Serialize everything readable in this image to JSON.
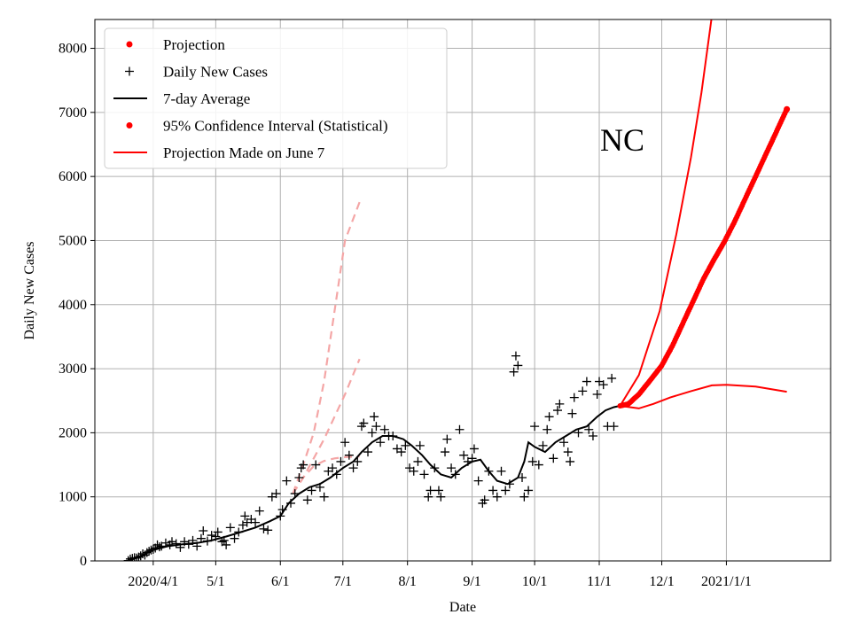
{
  "chart_data": {
    "type": "line",
    "state_label": "NC",
    "xlabel": "Date",
    "ylabel": "Daily New Cases",
    "x_axis": {
      "kind": "date",
      "range": [
        "2020-03-04",
        "2021-02-20"
      ],
      "ticks": [
        {
          "date": "2020-04-01",
          "label": "2020/4/1"
        },
        {
          "date": "2020-05-01",
          "label": "5/1"
        },
        {
          "date": "2020-06-01",
          "label": "6/1"
        },
        {
          "date": "2020-07-01",
          "label": "7/1"
        },
        {
          "date": "2020-08-01",
          "label": "8/1"
        },
        {
          "date": "2020-09-01",
          "label": "9/1"
        },
        {
          "date": "2020-10-01",
          "label": "10/1"
        },
        {
          "date": "2020-11-01",
          "label": "11/1"
        },
        {
          "date": "2020-12-01",
          "label": "12/1"
        },
        {
          "date": "2021-01-01",
          "label": "2021/1/1"
        }
      ]
    },
    "y_axis": {
      "range": [
        0,
        8450
      ],
      "ticks": [
        0,
        1000,
        2000,
        3000,
        4000,
        5000,
        6000,
        7000,
        8000
      ]
    },
    "grid": true,
    "legend": {
      "position": "top-left",
      "entries": [
        {
          "label": "Projection",
          "marker": "dot",
          "color": "#ff0000"
        },
        {
          "label": "Daily New Cases",
          "marker": "plus",
          "color": "#000000"
        },
        {
          "label": "7-day Average",
          "marker": "line",
          "color": "#000000"
        },
        {
          "label": "95% Confidence Interval (Statistical)",
          "marker": "dot",
          "color": "#ff0000"
        },
        {
          "label": "Projection Made on June 7",
          "marker": "line",
          "color": "#ff0000"
        }
      ]
    },
    "series": {
      "seven_day_average": {
        "color": "#000000",
        "points": [
          [
            "2020-03-20",
            0
          ],
          [
            "2020-03-25",
            60
          ],
          [
            "2020-04-01",
            170
          ],
          [
            "2020-04-08",
            230
          ],
          [
            "2020-04-15",
            260
          ],
          [
            "2020-04-22",
            280
          ],
          [
            "2020-04-29",
            320
          ],
          [
            "2020-05-06",
            380
          ],
          [
            "2020-05-13",
            450
          ],
          [
            "2020-05-20",
            520
          ],
          [
            "2020-05-27",
            620
          ],
          [
            "2020-06-01",
            700
          ],
          [
            "2020-06-05",
            900
          ],
          [
            "2020-06-10",
            1050
          ],
          [
            "2020-06-15",
            1150
          ],
          [
            "2020-06-20",
            1200
          ],
          [
            "2020-06-25",
            1300
          ],
          [
            "2020-07-01",
            1450
          ],
          [
            "2020-07-06",
            1550
          ],
          [
            "2020-07-10",
            1700
          ],
          [
            "2020-07-15",
            1850
          ],
          [
            "2020-07-20",
            1950
          ],
          [
            "2020-07-25",
            1950
          ],
          [
            "2020-07-30",
            1900
          ],
          [
            "2020-08-03",
            1800
          ],
          [
            "2020-08-08",
            1650
          ],
          [
            "2020-08-12",
            1500
          ],
          [
            "2020-08-17",
            1350
          ],
          [
            "2020-08-22",
            1300
          ],
          [
            "2020-08-27",
            1450
          ],
          [
            "2020-09-01",
            1550
          ],
          [
            "2020-09-05",
            1580
          ],
          [
            "2020-09-09",
            1400
          ],
          [
            "2020-09-13",
            1250
          ],
          [
            "2020-09-18",
            1200
          ],
          [
            "2020-09-23",
            1300
          ],
          [
            "2020-09-26",
            1550
          ],
          [
            "2020-09-28",
            1850
          ],
          [
            "2020-10-01",
            1780
          ],
          [
            "2020-10-06",
            1700
          ],
          [
            "2020-10-11",
            1850
          ],
          [
            "2020-10-16",
            1950
          ],
          [
            "2020-10-21",
            2050
          ],
          [
            "2020-10-26",
            2100
          ],
          [
            "2020-10-31",
            2250
          ],
          [
            "2020-11-04",
            2350
          ],
          [
            "2020-11-08",
            2400
          ],
          [
            "2020-11-11",
            2420
          ]
        ]
      },
      "daily_new_cases": {
        "color": "#000000",
        "points": [
          [
            "2020-03-20",
            5
          ],
          [
            "2020-03-21",
            30
          ],
          [
            "2020-03-22",
            40
          ],
          [
            "2020-03-23",
            50
          ],
          [
            "2020-03-24",
            45
          ],
          [
            "2020-03-25",
            60
          ],
          [
            "2020-03-26",
            80
          ],
          [
            "2020-03-27",
            110
          ],
          [
            "2020-03-28",
            90
          ],
          [
            "2020-03-29",
            130
          ],
          [
            "2020-03-30",
            150
          ],
          [
            "2020-03-31",
            170
          ],
          [
            "2020-04-01",
            180
          ],
          [
            "2020-04-02",
            200
          ],
          [
            "2020-04-03",
            250
          ],
          [
            "2020-04-04",
            220
          ],
          [
            "2020-04-05",
            230
          ],
          [
            "2020-04-07",
            280
          ],
          [
            "2020-04-09",
            250
          ],
          [
            "2020-04-10",
            300
          ],
          [
            "2020-04-12",
            270
          ],
          [
            "2020-04-14",
            210
          ],
          [
            "2020-04-16",
            300
          ],
          [
            "2020-04-18",
            260
          ],
          [
            "2020-04-20",
            320
          ],
          [
            "2020-04-22",
            230
          ],
          [
            "2020-04-24",
            350
          ],
          [
            "2020-04-25",
            470
          ],
          [
            "2020-04-27",
            310
          ],
          [
            "2020-04-29",
            400
          ],
          [
            "2020-05-01",
            380
          ],
          [
            "2020-05-02",
            450
          ],
          [
            "2020-05-04",
            300
          ],
          [
            "2020-05-05",
            320
          ],
          [
            "2020-05-06",
            250
          ],
          [
            "2020-05-08",
            520
          ],
          [
            "2020-05-10",
            350
          ],
          [
            "2020-05-12",
            450
          ],
          [
            "2020-05-14",
            560
          ],
          [
            "2020-05-15",
            700
          ],
          [
            "2020-05-16",
            600
          ],
          [
            "2020-05-18",
            650
          ],
          [
            "2020-05-20",
            600
          ],
          [
            "2020-05-22",
            780
          ],
          [
            "2020-05-24",
            500
          ],
          [
            "2020-05-26",
            480
          ],
          [
            "2020-05-28",
            1000
          ],
          [
            "2020-05-30",
            1050
          ],
          [
            "2020-06-01",
            700
          ],
          [
            "2020-06-02",
            800
          ],
          [
            "2020-06-04",
            1250
          ],
          [
            "2020-06-06",
            900
          ],
          [
            "2020-06-08",
            1050
          ],
          [
            "2020-06-10",
            1300
          ],
          [
            "2020-06-11",
            1450
          ],
          [
            "2020-06-12",
            1500
          ],
          [
            "2020-06-14",
            950
          ],
          [
            "2020-06-16",
            1100
          ],
          [
            "2020-06-18",
            1500
          ],
          [
            "2020-06-20",
            1150
          ],
          [
            "2020-06-22",
            1000
          ],
          [
            "2020-06-24",
            1400
          ],
          [
            "2020-06-26",
            1450
          ],
          [
            "2020-06-28",
            1350
          ],
          [
            "2020-06-30",
            1550
          ],
          [
            "2020-07-02",
            1850
          ],
          [
            "2020-07-04",
            1650
          ],
          [
            "2020-07-06",
            1450
          ],
          [
            "2020-07-08",
            1550
          ],
          [
            "2020-07-10",
            2100
          ],
          [
            "2020-07-11",
            2150
          ],
          [
            "2020-07-13",
            1700
          ],
          [
            "2020-07-15",
            2000
          ],
          [
            "2020-07-16",
            2250
          ],
          [
            "2020-07-17",
            2100
          ],
          [
            "2020-07-19",
            1850
          ],
          [
            "2020-07-21",
            2050
          ],
          [
            "2020-07-23",
            1950
          ],
          [
            "2020-07-25",
            1950
          ],
          [
            "2020-07-27",
            1750
          ],
          [
            "2020-07-29",
            1700
          ],
          [
            "2020-07-31",
            1800
          ],
          [
            "2020-08-02",
            1450
          ],
          [
            "2020-08-04",
            1400
          ],
          [
            "2020-08-06",
            1550
          ],
          [
            "2020-08-07",
            1800
          ],
          [
            "2020-08-09",
            1350
          ],
          [
            "2020-08-11",
            1000
          ],
          [
            "2020-08-12",
            1100
          ],
          [
            "2020-08-14",
            1450
          ],
          [
            "2020-08-16",
            1100
          ],
          [
            "2020-08-17",
            1000
          ],
          [
            "2020-08-19",
            1700
          ],
          [
            "2020-08-20",
            1900
          ],
          [
            "2020-08-22",
            1450
          ],
          [
            "2020-08-24",
            1350
          ],
          [
            "2020-08-26",
            2050
          ],
          [
            "2020-08-28",
            1650
          ],
          [
            "2020-08-30",
            1550
          ],
          [
            "2020-09-01",
            1600
          ],
          [
            "2020-09-02",
            1750
          ],
          [
            "2020-09-04",
            1250
          ],
          [
            "2020-09-06",
            900
          ],
          [
            "2020-09-07",
            950
          ],
          [
            "2020-09-09",
            1400
          ],
          [
            "2020-09-11",
            1100
          ],
          [
            "2020-09-13",
            1000
          ],
          [
            "2020-09-15",
            1400
          ],
          [
            "2020-09-17",
            1100
          ],
          [
            "2020-09-19",
            1200
          ],
          [
            "2020-09-21",
            2950
          ],
          [
            "2020-09-22",
            3200
          ],
          [
            "2020-09-23",
            3050
          ],
          [
            "2020-09-25",
            1300
          ],
          [
            "2020-09-26",
            1000
          ],
          [
            "2020-09-28",
            1100
          ],
          [
            "2020-09-30",
            1550
          ],
          [
            "2020-10-01",
            2100
          ],
          [
            "2020-10-03",
            1500
          ],
          [
            "2020-10-05",
            1800
          ],
          [
            "2020-10-07",
            2050
          ],
          [
            "2020-10-08",
            2250
          ],
          [
            "2020-10-10",
            1600
          ],
          [
            "2020-10-12",
            2350
          ],
          [
            "2020-10-13",
            2450
          ],
          [
            "2020-10-15",
            1850
          ],
          [
            "2020-10-17",
            1700
          ],
          [
            "2020-10-18",
            1550
          ],
          [
            "2020-10-19",
            2300
          ],
          [
            "2020-10-20",
            2550
          ],
          [
            "2020-10-22",
            2000
          ],
          [
            "2020-10-24",
            2650
          ],
          [
            "2020-10-26",
            2800
          ],
          [
            "2020-10-27",
            2050
          ],
          [
            "2020-10-29",
            1950
          ],
          [
            "2020-10-31",
            2600
          ],
          [
            "2020-11-01",
            2800
          ],
          [
            "2020-11-03",
            2750
          ],
          [
            "2020-11-05",
            2100
          ],
          [
            "2020-11-07",
            2850
          ],
          [
            "2020-11-08",
            2100
          ]
        ]
      },
      "projection": {
        "color": "#ff0000",
        "points": [
          [
            "2020-11-11",
            2420
          ],
          [
            "2020-11-15",
            2450
          ],
          [
            "2020-11-20",
            2600
          ],
          [
            "2020-11-25",
            2800
          ],
          [
            "2020-12-01",
            3050
          ],
          [
            "2020-12-06",
            3350
          ],
          [
            "2020-12-11",
            3700
          ],
          [
            "2020-12-16",
            4050
          ],
          [
            "2020-12-21",
            4400
          ],
          [
            "2020-12-26",
            4700
          ],
          [
            "2020-12-31",
            4980
          ],
          [
            "2021-01-05",
            5300
          ],
          [
            "2021-01-10",
            5650
          ],
          [
            "2021-01-15",
            6000
          ],
          [
            "2021-01-20",
            6350
          ],
          [
            "2021-01-25",
            6700
          ],
          [
            "2021-01-30",
            7050
          ]
        ]
      },
      "confidence_upper": {
        "color": "#ff0000",
        "points": [
          [
            "2020-11-11",
            2420
          ],
          [
            "2020-11-20",
            2900
          ],
          [
            "2020-11-30",
            3900
          ],
          [
            "2020-12-08",
            5100
          ],
          [
            "2020-12-15",
            6300
          ],
          [
            "2020-12-20",
            7300
          ],
          [
            "2020-12-25",
            8500
          ]
        ]
      },
      "confidence_lower": {
        "color": "#ff0000",
        "points": [
          [
            "2020-11-11",
            2420
          ],
          [
            "2020-11-20",
            2380
          ],
          [
            "2020-11-27",
            2450
          ],
          [
            "2020-12-05",
            2550
          ],
          [
            "2020-12-15",
            2650
          ],
          [
            "2020-12-25",
            2740
          ],
          [
            "2021-01-01",
            2750
          ],
          [
            "2021-01-15",
            2720
          ],
          [
            "2021-01-30",
            2640
          ]
        ]
      },
      "june7_upper": {
        "color": "#f4a6a6",
        "points": [
          [
            "2020-06-07",
            1050
          ],
          [
            "2020-06-12",
            1500
          ],
          [
            "2020-06-17",
            2000
          ],
          [
            "2020-06-22",
            2800
          ],
          [
            "2020-06-27",
            3900
          ],
          [
            "2020-07-02",
            5000
          ],
          [
            "2020-07-09",
            5600
          ]
        ]
      },
      "june7_lower": {
        "color": "#f4a6a6",
        "points": [
          [
            "2020-06-07",
            1050
          ],
          [
            "2020-06-12",
            1300
          ],
          [
            "2020-06-17",
            1600
          ],
          [
            "2020-06-22",
            1900
          ],
          [
            "2020-06-27",
            2250
          ],
          [
            "2020-07-02",
            2600
          ],
          [
            "2020-07-09",
            3150
          ]
        ]
      },
      "june7_center": {
        "color": "#f4a6a6",
        "points": [
          [
            "2020-06-07",
            1050
          ],
          [
            "2020-06-12",
            1300
          ],
          [
            "2020-06-17",
            1480
          ],
          [
            "2020-06-22",
            1560
          ],
          [
            "2020-06-27",
            1600
          ],
          [
            "2020-07-02",
            1620
          ],
          [
            "2020-07-09",
            1630
          ]
        ]
      }
    }
  }
}
